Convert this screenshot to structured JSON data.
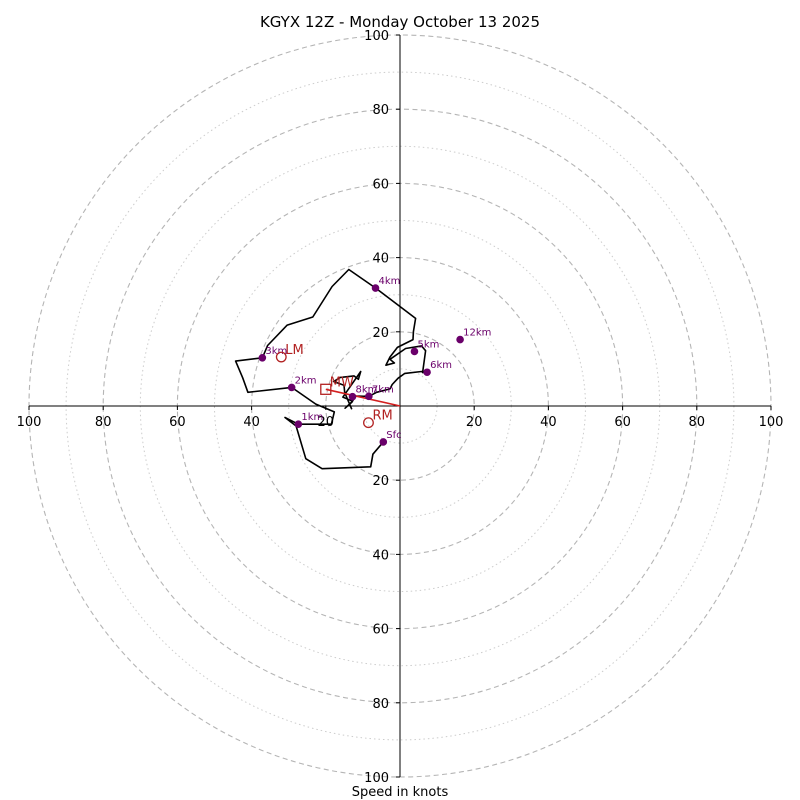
{
  "chart_data": {
    "type": "hodograph",
    "title": "KGYX 12Z - Monday October 13 2025",
    "xlabel": "Speed in knots",
    "range": [
      -100,
      100
    ],
    "ring_major": [
      20,
      40,
      60,
      80,
      100
    ],
    "ring_minor": [
      10,
      30,
      50,
      70,
      90
    ],
    "ticks": {
      "x": [
        {
          "value": -100,
          "label": "100"
        },
        {
          "value": -80,
          "label": "80"
        },
        {
          "value": -60,
          "label": "60"
        },
        {
          "value": -40,
          "label": "40"
        },
        {
          "value": -20,
          "label": "20"
        },
        {
          "value": 20,
          "label": "20"
        },
        {
          "value": 40,
          "label": "40"
        },
        {
          "value": 60,
          "label": "60"
        },
        {
          "value": 80,
          "label": "80"
        },
        {
          "value": 100,
          "label": "100"
        }
      ],
      "y": [
        {
          "value": 100,
          "label": "100"
        },
        {
          "value": 80,
          "label": "80"
        },
        {
          "value": 60,
          "label": "60"
        },
        {
          "value": 40,
          "label": "40"
        },
        {
          "value": 20,
          "label": "20"
        },
        {
          "value": -20,
          "label": "20"
        },
        {
          "value": -40,
          "label": "40"
        },
        {
          "value": -60,
          "label": "60"
        },
        {
          "value": -80,
          "label": "80"
        },
        {
          "value": -100,
          "label": "100"
        }
      ]
    },
    "trace": [
      [
        -4.5,
        -9.7
      ],
      [
        -7.3,
        -13.0
      ],
      [
        -7.9,
        -16.4
      ],
      [
        -21.0,
        -16.9
      ],
      [
        -25.4,
        -14.2
      ],
      [
        -28.0,
        -5.4
      ],
      [
        -31.0,
        -3.1
      ],
      [
        -27.4,
        -4.9
      ],
      [
        -18.5,
        -4.9
      ],
      [
        -18.5,
        -4.9
      ],
      [
        -17.7,
        -1.6
      ],
      [
        -22.7,
        0.5
      ],
      [
        -29.2,
        5.0
      ],
      [
        -41.0,
        3.7
      ],
      [
        -42.4,
        7.6
      ],
      [
        -44.3,
        12.1
      ],
      [
        -37.1,
        13.0
      ],
      [
        -35.7,
        16.3
      ],
      [
        -30.4,
        21.8
      ],
      [
        -23.5,
        24.0
      ],
      [
        -18.3,
        32.2
      ],
      [
        -13.8,
        36.8
      ],
      [
        -6.6,
        31.8
      ],
      [
        -6.6,
        31.8
      ],
      [
        4.2,
        23.6
      ],
      [
        3.6,
        20.0
      ],
      [
        3.5,
        17.9
      ],
      [
        -0.7,
        15.8
      ],
      [
        -2.7,
        13.2
      ],
      [
        -3.8,
        11.0
      ],
      [
        -1.5,
        11.6
      ],
      [
        -2.7,
        12.6
      ],
      [
        1.5,
        15.5
      ],
      [
        5.8,
        16.2
      ],
      [
        6.9,
        14.9
      ],
      [
        6.1,
        9.0
      ],
      [
        7.3,
        9.1
      ],
      [
        5.8,
        9.3
      ],
      [
        1.3,
        8.8
      ],
      [
        -0.5,
        7.5
      ],
      [
        -2.1,
        5.8
      ],
      [
        -2.7,
        4.6
      ],
      [
        -6.3,
        3.7
      ],
      [
        -8.4,
        2.6
      ],
      [
        -12.0,
        2.7
      ],
      [
        -13.0,
        1.0
      ],
      [
        -14.8,
        -0.6
      ],
      [
        -12.8,
        1.3
      ],
      [
        -15.4,
        2.4
      ],
      [
        -10.6,
        9.3
      ],
      [
        -11.2,
        7.2
      ],
      [
        -12.4,
        8.1
      ],
      [
        -16.1,
        7.7
      ],
      [
        -17.9,
        6.6
      ],
      [
        -15.1,
        5.6
      ],
      [
        -14.9,
        3.6
      ],
      [
        -13.0,
        -0.9
      ]
    ],
    "height_markers": [
      {
        "label": "Sfc",
        "u": -4.5,
        "v": -9.7
      },
      {
        "label": "1km",
        "u": -27.4,
        "v": -4.9
      },
      {
        "label": "2km",
        "u": -29.2,
        "v": 5.0
      },
      {
        "label": "3km",
        "u": -37.1,
        "v": 13.0
      },
      {
        "label": "4km",
        "u": -6.6,
        "v": 31.8
      },
      {
        "label": "5km",
        "u": 3.9,
        "v": 14.7
      },
      {
        "label": "6km",
        "u": 7.3,
        "v": 9.1
      },
      {
        "label": "7km",
        "u": -8.4,
        "v": 2.6
      },
      {
        "label": "8km",
        "u": -12.8,
        "v": 2.5
      },
      {
        "label": "12km",
        "u": 16.2,
        "v": 17.9
      }
    ],
    "storm_motion": [
      {
        "label": "LM",
        "u": -32.0,
        "v": 13.2,
        "shape": "circle"
      },
      {
        "label": "MW",
        "u": -20.0,
        "v": 4.5,
        "shape": "square"
      },
      {
        "label": "RM",
        "u": -8.5,
        "v": -4.5,
        "shape": "circle"
      }
    ],
    "shear_vector": {
      "from": [
        0.0,
        0.0
      ],
      "to": [
        -20.0,
        4.5
      ]
    },
    "colors": {
      "trace": "#000000",
      "marker": "#6a006a",
      "motion": "#b22222",
      "shear": "#d42020",
      "ring": "#b5b5b5",
      "axis": "#000000"
    }
  }
}
